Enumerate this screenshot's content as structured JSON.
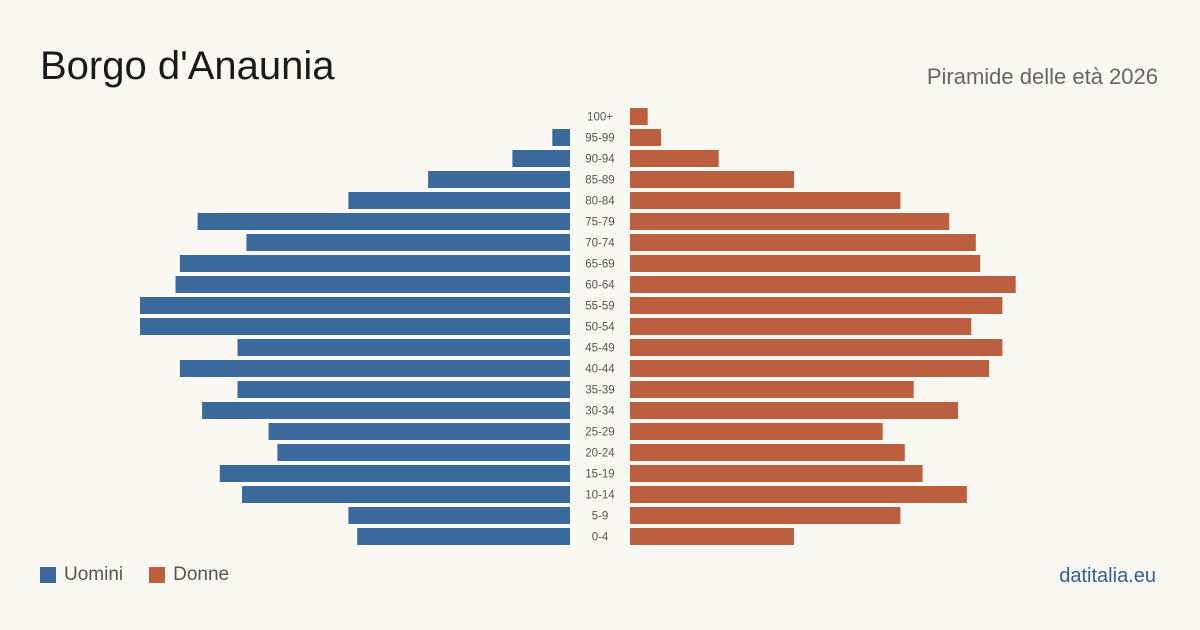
{
  "header": {
    "title": "Borgo d'Anaunia",
    "subtitle": "Piramide delle età 2026"
  },
  "legend": {
    "male_label": "Uomini",
    "female_label": "Donne"
  },
  "source": "datitalia.eu",
  "colors": {
    "male": "#3a6a9b",
    "female": "#bc5f3e",
    "tick_text": "#555555",
    "background": "#faf8f3"
  },
  "chart_data": {
    "type": "bar",
    "orientation": "horizontal-pyramid",
    "categories": [
      "100+",
      "95-99",
      "90-94",
      "85-89",
      "80-84",
      "75-79",
      "70-74",
      "65-69",
      "60-64",
      "55-59",
      "50-54",
      "45-49",
      "40-44",
      "35-39",
      "30-34",
      "25-29",
      "20-24",
      "15-19",
      "10-14",
      "5-9",
      "0-4"
    ],
    "series": [
      {
        "name": "Uomini",
        "values": [
          0,
          4,
          13,
          32,
          50,
          84,
          73,
          88,
          89,
          97,
          97,
          75,
          88,
          75,
          83,
          68,
          66,
          79,
          74,
          50,
          48
        ]
      },
      {
        "name": "Donne",
        "values": [
          4,
          7,
          20,
          37,
          61,
          72,
          78,
          79,
          87,
          84,
          77,
          84,
          81,
          64,
          74,
          57,
          62,
          66,
          76,
          61,
          37
        ]
      }
    ],
    "xlim": [
      0,
      97
    ],
    "grid": false,
    "legend_position": "bottom-left"
  }
}
